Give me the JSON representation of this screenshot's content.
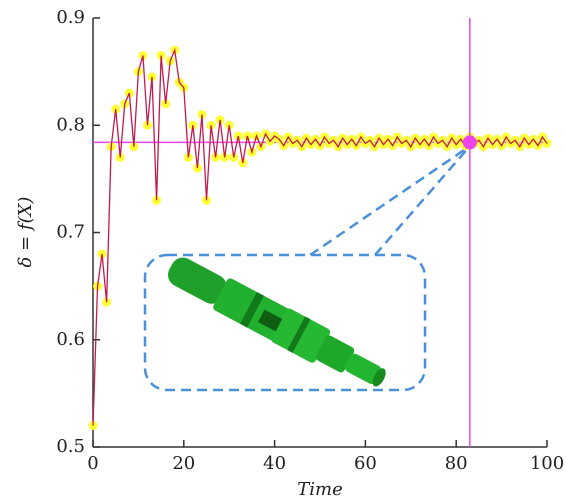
{
  "chart_data": {
    "type": "line",
    "x_label": "Time",
    "y_label": "δ = f(X)",
    "x": [
      0,
      1,
      2,
      3,
      4,
      5,
      6,
      7,
      8,
      9,
      10,
      11,
      12,
      13,
      14,
      15,
      16,
      17,
      18,
      19,
      20,
      21,
      22,
      23,
      24,
      25,
      26,
      27,
      28,
      29,
      30,
      31,
      32,
      33,
      34,
      35,
      36,
      37,
      38,
      39,
      40,
      41,
      42,
      43,
      44,
      45,
      46,
      47,
      48,
      49,
      50,
      51,
      52,
      53,
      54,
      55,
      56,
      57,
      58,
      59,
      60,
      61,
      62,
      63,
      64,
      65,
      66,
      67,
      68,
      69,
      70,
      71,
      72,
      73,
      74,
      75,
      76,
      77,
      78,
      79,
      80,
      81,
      82,
      83,
      84,
      85,
      86,
      87,
      88,
      89,
      90,
      91,
      92,
      93,
      94,
      95,
      96,
      97,
      98,
      99,
      100
    ],
    "series": [
      {
        "color": "#c21a4e",
        "marker_color": "#ffff33",
        "values": [
          0.52,
          0.65,
          0.68,
          0.635,
          0.78,
          0.815,
          0.77,
          0.82,
          0.83,
          0.78,
          0.85,
          0.865,
          0.8,
          0.845,
          0.73,
          0.865,
          0.82,
          0.86,
          0.87,
          0.84,
          0.835,
          0.77,
          0.8,
          0.76,
          0.81,
          0.73,
          0.8,
          0.77,
          0.805,
          0.77,
          0.8,
          0.77,
          0.79,
          0.765,
          0.79,
          0.775,
          0.79,
          0.78,
          0.792,
          0.785,
          0.79,
          0.787,
          0.781,
          0.789,
          0.783,
          0.786,
          0.78,
          0.788,
          0.782,
          0.787,
          0.781,
          0.789,
          0.783,
          0.786,
          0.78,
          0.788,
          0.782,
          0.787,
          0.781,
          0.789,
          0.783,
          0.786,
          0.78,
          0.788,
          0.782,
          0.787,
          0.781,
          0.789,
          0.783,
          0.786,
          0.78,
          0.788,
          0.782,
          0.787,
          0.781,
          0.789,
          0.783,
          0.786,
          0.78,
          0.788,
          0.782,
          0.787,
          0.781,
          0.789,
          0.783,
          0.786,
          0.78,
          0.788,
          0.782,
          0.787,
          0.781,
          0.789,
          0.783,
          0.786,
          0.78,
          0.788,
          0.782,
          0.787,
          0.781,
          0.789,
          0.783
        ]
      }
    ],
    "crosshair": {
      "x": 83,
      "y": 0.784,
      "color": "#ee44ee"
    },
    "xlim": [
      0,
      100
    ],
    "xticks": [
      0,
      20,
      40,
      60,
      80,
      100
    ],
    "ylim": [
      0.5,
      0.9
    ],
    "yticks": [
      0.5,
      0.6,
      0.7,
      0.8,
      0.9
    ]
  }
}
